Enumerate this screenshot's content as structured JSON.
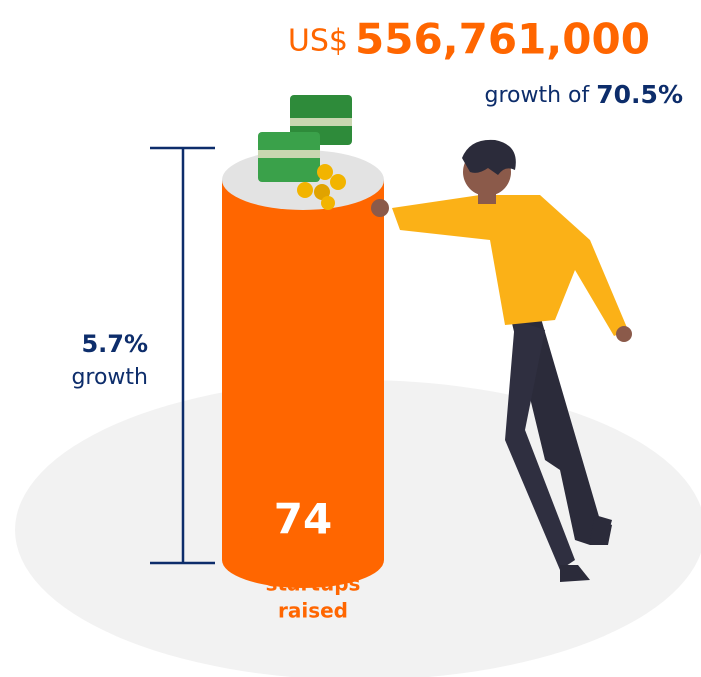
{
  "headline": {
    "currency": "US$",
    "amount": "556,761,000",
    "growth_prefix": "growth of",
    "growth_value": "70.5%"
  },
  "bracket": {
    "value": "5.7%",
    "label": "growth"
  },
  "cylinder": {
    "value": "74",
    "label_line1": "startups",
    "label_line2": "raised"
  }
}
